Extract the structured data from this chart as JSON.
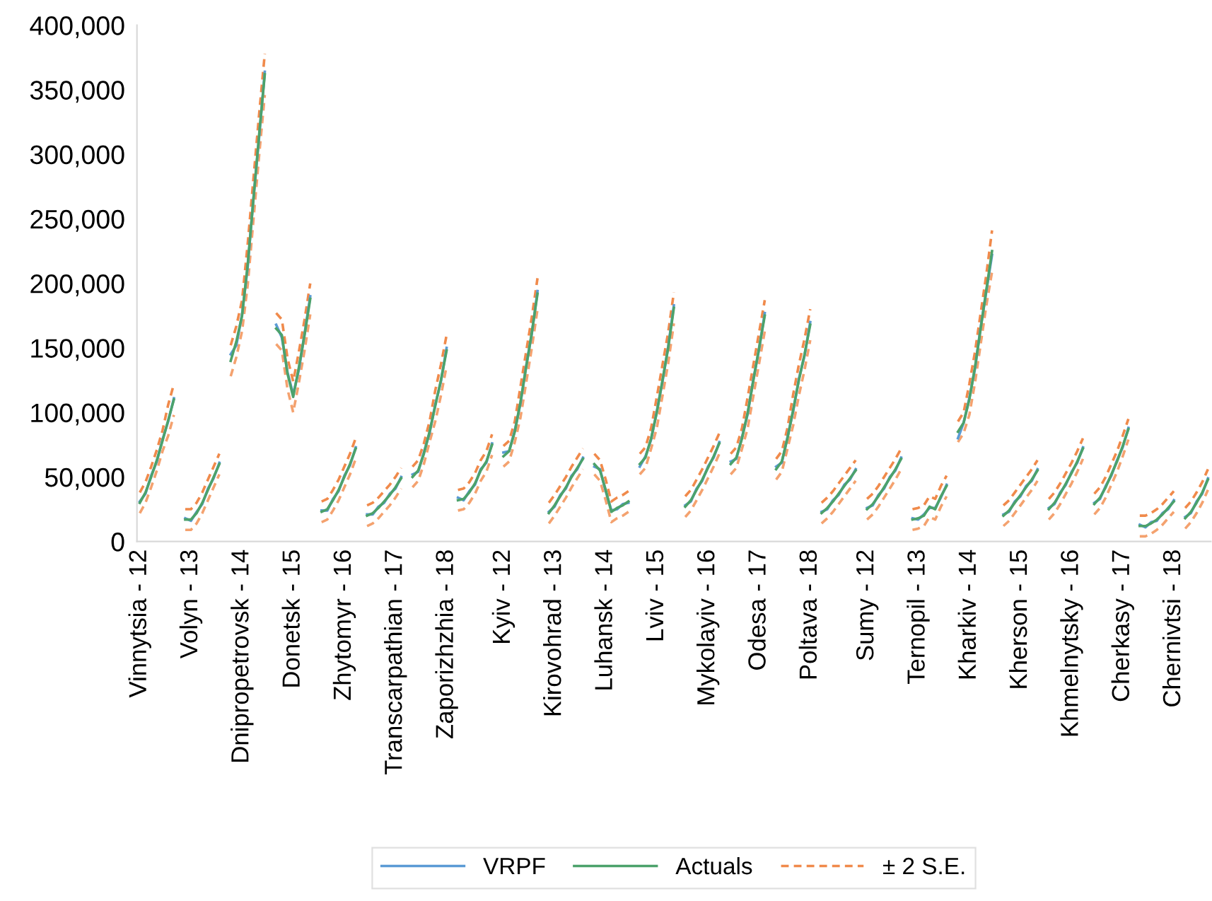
{
  "chart_data": {
    "type": "line",
    "categories": [
      "Vinnytsia - 12",
      null,
      null,
      null,
      null,
      null,
      null,
      null,
      null,
      "Volyn - 13",
      null,
      null,
      null,
      null,
      null,
      null,
      null,
      null,
      "Dnipropetrovsk - 14",
      null,
      null,
      null,
      null,
      null,
      null,
      null,
      null,
      "Donetsk - 15",
      null,
      null,
      null,
      null,
      null,
      null,
      null,
      null,
      "Zhytomyr - 16",
      null,
      null,
      null,
      null,
      null,
      null,
      null,
      null,
      "Transcarpathian - 17",
      null,
      null,
      null,
      null,
      null,
      null,
      null,
      null,
      "Zaporizhzhia - 18",
      null,
      null,
      null,
      null,
      null,
      null,
      null,
      null,
      null,
      "Kyiv - 12",
      null,
      null,
      null,
      null,
      null,
      null,
      null,
      null,
      "Kirovohrad - 13",
      null,
      null,
      null,
      null,
      null,
      null,
      null,
      null,
      "Luhansk - 14",
      null,
      null,
      null,
      null,
      null,
      null,
      null,
      null,
      "Lviv - 15",
      null,
      null,
      null,
      null,
      null,
      null,
      null,
      null,
      "Mykolayiv - 16",
      null,
      null,
      null,
      null,
      null,
      null,
      null,
      null,
      "Odesa - 17",
      null,
      null,
      null,
      null,
      null,
      null,
      null,
      null,
      "Poltava - 18",
      null,
      null,
      null,
      null,
      null,
      null,
      null,
      null,
      null,
      "Sumy - 12",
      null,
      null,
      null,
      null,
      null,
      null,
      null,
      null,
      "Ternopil - 13",
      null,
      null,
      null,
      null,
      null,
      null,
      null,
      null,
      "Kharkiv - 14",
      null,
      null,
      null,
      null,
      null,
      null,
      null,
      null,
      "Kherson - 15",
      null,
      null,
      null,
      null,
      null,
      null,
      null,
      null,
      "Khmelnytsky - 16",
      null,
      null,
      null,
      null,
      null,
      null,
      null,
      null,
      "Cherkasy - 17",
      null,
      null,
      null,
      null,
      null,
      null,
      null,
      null,
      "Chernivtsi - 18",
      null,
      null,
      null,
      null,
      null,
      null
    ],
    "ylim": [
      0,
      400000
    ],
    "yticks": [
      0,
      {
        "value": 50000,
        "label": "50,000"
      },
      {
        "value": 100000,
        "label": "100,000"
      },
      {
        "value": 150000,
        "label": "150,000"
      },
      {
        "value": 200000,
        "label": "200,000"
      },
      {
        "value": 250000,
        "label": "250,000"
      },
      {
        "value": 300000,
        "label": "300,000"
      },
      {
        "value": 350000,
        "label": "350,000"
      },
      {
        "value": 400000,
        "label": "400,000"
      }
    ],
    "grid": false,
    "legend": "bottom",
    "series": [
      {
        "name": "VRPF",
        "color": "#5b9bd5",
        "line_style": "solid",
        "values": [
          31000,
          37000,
          51000,
          62000,
          79000,
          93000,
          111000,
          null,
          18000,
          16000,
          23000,
          29000,
          41000,
          49000,
          61000,
          null,
          145000,
          152000,
          176000,
          213000,
          266000,
          313000,
          364000,
          null,
          168000,
          158000,
          131000,
          114000,
          133000,
          161000,
          190000,
          null,
          24000,
          24000,
          33000,
          39000,
          51000,
          59000,
          73000,
          null,
          21000,
          21000,
          27000,
          30000,
          37000,
          41000,
          50000,
          null,
          52000,
          54000,
          69000,
          84000,
          106000,
          124000,
          150000,
          null,
          34000,
          32000,
          39000,
          44000,
          56000,
          61000,
          76000,
          null,
          69000,
          70000,
          86000,
          107000,
          136000,
          161000,
          194000,
          null,
          23000,
          27000,
          36000,
          41000,
          51000,
          56000,
          65000,
          null,
          58000,
          56000,
          39000,
          24000,
          25000,
          29000,
          30000,
          null,
          58000,
          66000,
          79000,
          101000,
          124000,
          151000,
          183000,
          null,
          28000,
          31000,
          41000,
          47000,
          58000,
          65000,
          77000,
          null,
          62000,
          64000,
          81000,
          99000,
          126000,
          149000,
          177000,
          null,
          58000,
          61000,
          81000,
          101000,
          126000,
          144000,
          170000,
          null,
          23000,
          25000,
          32000,
          36000,
          44000,
          48000,
          56000,
          null,
          26000,
          28000,
          36000,
          41000,
          50000,
          55000,
          65000,
          null,
          18000,
          17000,
          21000,
          26000,
          26000,
          34000,
          44000,
          null,
          80000,
          92000,
          111000,
          134000,
          166000,
          194000,
          222000,
          null,
          21000,
          23000,
          31000,
          35000,
          43000,
          47000,
          56000,
          null,
          26000,
          29000,
          38000,
          44000,
          54000,
          61000,
          73000,
          null,
          30000,
          33000,
          43000,
          51000,
          63000,
          73000,
          88000,
          null,
          13000,
          11000,
          15000,
          16000,
          22000,
          25000,
          32000,
          null,
          19000,
          22000,
          31000,
          37000,
          49000
        ]
      },
      {
        "name": "Actuals",
        "color": "#4ca26b",
        "line_style": "solid",
        "values": [
          30000,
          38000,
          50000,
          63000,
          78000,
          94000,
          110000,
          null,
          17000,
          17000,
          22000,
          30000,
          40000,
          50000,
          60000,
          null,
          140000,
          155000,
          175000,
          215000,
          265000,
          315000,
          362000,
          null,
          165000,
          160000,
          130000,
          112000,
          135000,
          160000,
          188000,
          null,
          23000,
          25000,
          32000,
          40000,
          50000,
          60000,
          72000,
          null,
          20000,
          22000,
          26000,
          31000,
          36000,
          42000,
          49000,
          null,
          50000,
          55000,
          68000,
          85000,
          105000,
          125000,
          148000,
          null,
          32000,
          33000,
          38000,
          45000,
          55000,
          62000,
          75000,
          null,
          66000,
          70000,
          85000,
          108000,
          135000,
          162000,
          192000,
          null,
          22000,
          28000,
          35000,
          42000,
          50000,
          57000,
          64000,
          null,
          60000,
          55000,
          40000,
          23000,
          26000,
          28000,
          31000,
          null,
          60000,
          65000,
          80000,
          100000,
          125000,
          150000,
          181000,
          null,
          27000,
          32000,
          40000,
          48000,
          57000,
          66000,
          76000,
          null,
          60000,
          65000,
          80000,
          100000,
          125000,
          150000,
          175000,
          null,
          56000,
          62000,
          80000,
          102000,
          125000,
          145000,
          168000,
          null,
          22000,
          26000,
          31000,
          37000,
          43000,
          49000,
          55000,
          null,
          25000,
          29000,
          35000,
          42000,
          49000,
          56000,
          64000,
          null,
          17000,
          18000,
          20000,
          27000,
          25000,
          35000,
          43000,
          null,
          85000,
          92000,
          110000,
          135000,
          165000,
          195000,
          225000,
          null,
          20000,
          24000,
          30000,
          36000,
          42000,
          48000,
          55000,
          null,
          25000,
          30000,
          37000,
          45000,
          53000,
          62000,
          72000,
          null,
          29000,
          34000,
          42000,
          52000,
          62000,
          74000,
          87000,
          null,
          12000,
          12000,
          14000,
          17000,
          21000,
          26000,
          31000,
          null,
          18000,
          23000,
          30000,
          38000,
          48000
        ]
      },
      {
        "name": "± 2 S.E.",
        "color": "#f08a4b",
        "line_style": "dashed",
        "values": [
          38000,
          46000,
          58000,
          71000,
          86000,
          106000,
          122000,
          null,
          25000,
          25000,
          30000,
          38000,
          48000,
          58000,
          68000,
          null,
          152000,
          167000,
          187000,
          231000,
          281000,
          331000,
          378000,
          null,
          177000,
          172000,
          142000,
          124000,
          147000,
          172000,
          200000,
          null,
          31000,
          33000,
          40000,
          48000,
          58000,
          68000,
          80000,
          null,
          28000,
          30000,
          34000,
          39000,
          44000,
          50000,
          57000,
          null,
          58000,
          63000,
          76000,
          93000,
          117000,
          137000,
          160000,
          null,
          40000,
          41000,
          46000,
          53000,
          63000,
          70000,
          83000,
          null,
          74000,
          78000,
          93000,
          120000,
          147000,
          174000,
          204000,
          null,
          30000,
          36000,
          43000,
          50000,
          58000,
          65000,
          72000,
          null,
          68000,
          63000,
          48000,
          31000,
          34000,
          36000,
          39000,
          null,
          68000,
          73000,
          88000,
          112000,
          137000,
          162000,
          193000,
          null,
          35000,
          40000,
          48000,
          56000,
          65000,
          74000,
          84000,
          null,
          68000,
          73000,
          88000,
          112000,
          137000,
          162000,
          187000,
          null,
          64000,
          70000,
          88000,
          114000,
          137000,
          157000,
          180000,
          null,
          30000,
          34000,
          39000,
          45000,
          51000,
          57000,
          63000,
          null,
          33000,
          37000,
          43000,
          50000,
          57000,
          64000,
          72000,
          null,
          25000,
          26000,
          28000,
          35000,
          33000,
          43000,
          51000,
          null,
          93000,
          100000,
          122000,
          147000,
          177000,
          207000,
          241000,
          null,
          28000,
          32000,
          38000,
          44000,
          50000,
          56000,
          63000,
          null,
          33000,
          38000,
          45000,
          53000,
          61000,
          70000,
          80000,
          null,
          37000,
          42000,
          50000,
          60000,
          70000,
          82000,
          95000,
          null,
          20000,
          20000,
          22000,
          25000,
          29000,
          34000,
          39000,
          null,
          26000,
          31000,
          38000,
          46000,
          56000
        ]
      },
      {
        "color": "#f4a26f",
        "line_style": "dashed",
        "values": [
          22000,
          30000,
          42000,
          55000,
          70000,
          82000,
          98000,
          null,
          9000,
          9000,
          14000,
          22000,
          32000,
          42000,
          52000,
          null,
          128000,
          143000,
          163000,
          199000,
          249000,
          299000,
          346000,
          null,
          153000,
          148000,
          118000,
          100000,
          123000,
          148000,
          176000,
          null,
          15000,
          17000,
          24000,
          32000,
          42000,
          52000,
          64000,
          null,
          12000,
          14000,
          18000,
          23000,
          28000,
          34000,
          41000,
          null,
          42000,
          47000,
          60000,
          77000,
          93000,
          113000,
          136000,
          null,
          24000,
          25000,
          30000,
          37000,
          47000,
          54000,
          67000,
          null,
          58000,
          62000,
          77000,
          96000,
          123000,
          150000,
          180000,
          null,
          14000,
          20000,
          27000,
          34000,
          42000,
          49000,
          56000,
          null,
          52000,
          47000,
          32000,
          15000,
          18000,
          20000,
          23000,
          null,
          52000,
          57000,
          72000,
          88000,
          113000,
          138000,
          169000,
          null,
          19000,
          24000,
          32000,
          40000,
          49000,
          58000,
          68000,
          null,
          52000,
          57000,
          72000,
          88000,
          113000,
          138000,
          163000,
          null,
          48000,
          54000,
          72000,
          90000,
          113000,
          133000,
          156000,
          null,
          14000,
          18000,
          23000,
          29000,
          35000,
          41000,
          47000,
          null,
          17000,
          21000,
          27000,
          34000,
          41000,
          48000,
          56000,
          null,
          9000,
          10000,
          12000,
          19000,
          17000,
          27000,
          35000,
          null,
          77000,
          84000,
          98000,
          123000,
          153000,
          183000,
          209000,
          null,
          12000,
          16000,
          22000,
          28000,
          34000,
          40000,
          47000,
          null,
          17000,
          22000,
          29000,
          37000,
          45000,
          54000,
          64000,
          null,
          21000,
          26000,
          34000,
          44000,
          54000,
          66000,
          79000,
          null,
          4000,
          4000,
          6000,
          9000,
          13000,
          18000,
          23000,
          null,
          10000,
          15000,
          22000,
          30000,
          40000
        ]
      }
    ]
  }
}
